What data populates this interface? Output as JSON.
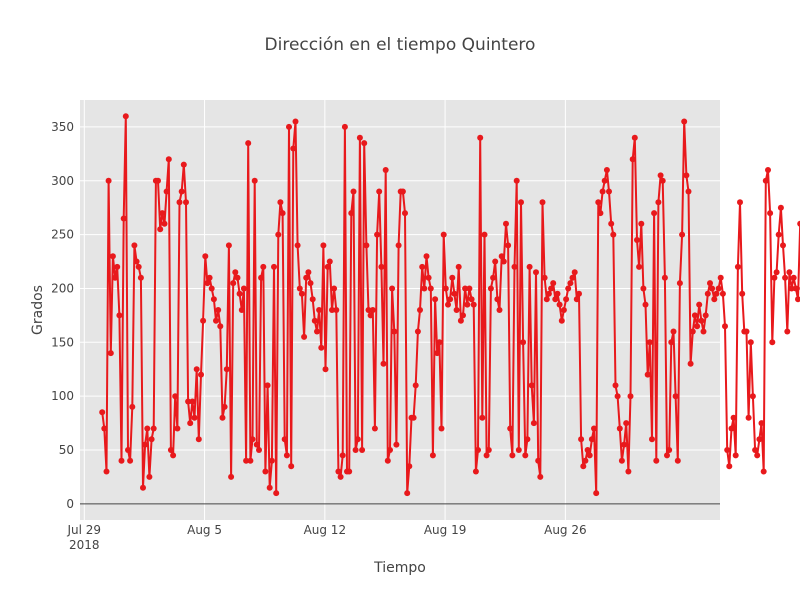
{
  "chart_data": {
    "type": "line",
    "title": "Dirección en el tiempo Quintero",
    "xlabel": "Tiempo",
    "ylabel": "Grados",
    "x_range": [
      "2018-07-28T18:00",
      "2018-09-04T00:00"
    ],
    "y_range": [
      -15,
      375
    ],
    "y_ticks": [
      0,
      50,
      100,
      150,
      200,
      250,
      300,
      350
    ],
    "x_ticks": [
      {
        "date": "2018-07-29",
        "label": "Jul 29",
        "sublabel": "2018"
      },
      {
        "date": "2018-08-05",
        "label": "Aug 5",
        "sublabel": ""
      },
      {
        "date": "2018-08-12",
        "label": "Aug 12",
        "sublabel": ""
      },
      {
        "date": "2018-08-19",
        "label": "Aug 19",
        "sublabel": ""
      },
      {
        "date": "2018-08-26",
        "label": "Aug 26",
        "sublabel": ""
      }
    ],
    "grid": true,
    "legend": "none",
    "plot_bg": "#e5e5e5",
    "series": [
      {
        "color": "#e8191c",
        "start": "2018-07-30T01:00",
        "step_hours": 3,
        "y": [
          85,
          70,
          30,
          300,
          140,
          230,
          210,
          220,
          175,
          40,
          265,
          360,
          50,
          40,
          90,
          240,
          225,
          220,
          210,
          15,
          55,
          70,
          25,
          60,
          70,
          300,
          300,
          255,
          270,
          260,
          290,
          320,
          50,
          45,
          100,
          70,
          280,
          290,
          315,
          280,
          95,
          75,
          95,
          80,
          125,
          60,
          120,
          170,
          230,
          205,
          210,
          200,
          190,
          170,
          180,
          165,
          80,
          90,
          125,
          240,
          25,
          205,
          215,
          210,
          195,
          180,
          200,
          40,
          335,
          40,
          60,
          300,
          55,
          50,
          210,
          220,
          30,
          110,
          15,
          40,
          220,
          10,
          250,
          280,
          270,
          60,
          45,
          350,
          35,
          330,
          355,
          240,
          200,
          195,
          155,
          210,
          215,
          205,
          190,
          170,
          160,
          180,
          145,
          240,
          125,
          220,
          225,
          180,
          200,
          180,
          30,
          25,
          45,
          350,
          30,
          30,
          270,
          290,
          50,
          60,
          340,
          50,
          335,
          240,
          180,
          175,
          180,
          70,
          250,
          290,
          220,
          130,
          310,
          40,
          50,
          200,
          160,
          55,
          240,
          290,
          290,
          270,
          10,
          35,
          80,
          80,
          110,
          160,
          180,
          220,
          200,
          230,
          210,
          200,
          45,
          190,
          140,
          150,
          70,
          250,
          200,
          185,
          190,
          210,
          195,
          180,
          220,
          170,
          175,
          200,
          185,
          200,
          190,
          185,
          30,
          50,
          340,
          80,
          250,
          45,
          50,
          200,
          210,
          225,
          190,
          180,
          230,
          225,
          260,
          240,
          70,
          45,
          220,
          300,
          50,
          280,
          150,
          45,
          60,
          220,
          110,
          75,
          215,
          40,
          25,
          280,
          210,
          190,
          195,
          200,
          205,
          190,
          195,
          185,
          170,
          180,
          190,
          200,
          205,
          210,
          215,
          190,
          195,
          60,
          35,
          40,
          50,
          45,
          60,
          70,
          10,
          280,
          270,
          290,
          300,
          310,
          290,
          260,
          250,
          110,
          100,
          70,
          40,
          55,
          75,
          30,
          100,
          320,
          340,
          245,
          220,
          260,
          200,
          185,
          120,
          150,
          60,
          270,
          40,
          280,
          305,
          300,
          210,
          45,
          50,
          150,
          160,
          100,
          40,
          205,
          250,
          355,
          305,
          290,
          130,
          160,
          175,
          165,
          185,
          170,
          160,
          175,
          195,
          205,
          200,
          190,
          195,
          200,
          210,
          195,
          165,
          50,
          35,
          70,
          80,
          45,
          220,
          280,
          195,
          160,
          160,
          80,
          150,
          100,
          50,
          45,
          60,
          75,
          30,
          300,
          310,
          270,
          150,
          210,
          215,
          250,
          275,
          240,
          210,
          160,
          215,
          200,
          210,
          200,
          190,
          260,
          200,
          160,
          170,
          230,
          245,
          250,
          245,
          50,
          160,
          130,
          70,
          210,
          250,
          280,
          290,
          320,
          250,
          130,
          45,
          70,
          75,
          300,
          310,
          50,
          60,
          90,
          100,
          60,
          60,
          50,
          150,
          145,
          230,
          170,
          160,
          120,
          40,
          85,
          55,
          60,
          360,
          300
        ]
      }
    ]
  }
}
